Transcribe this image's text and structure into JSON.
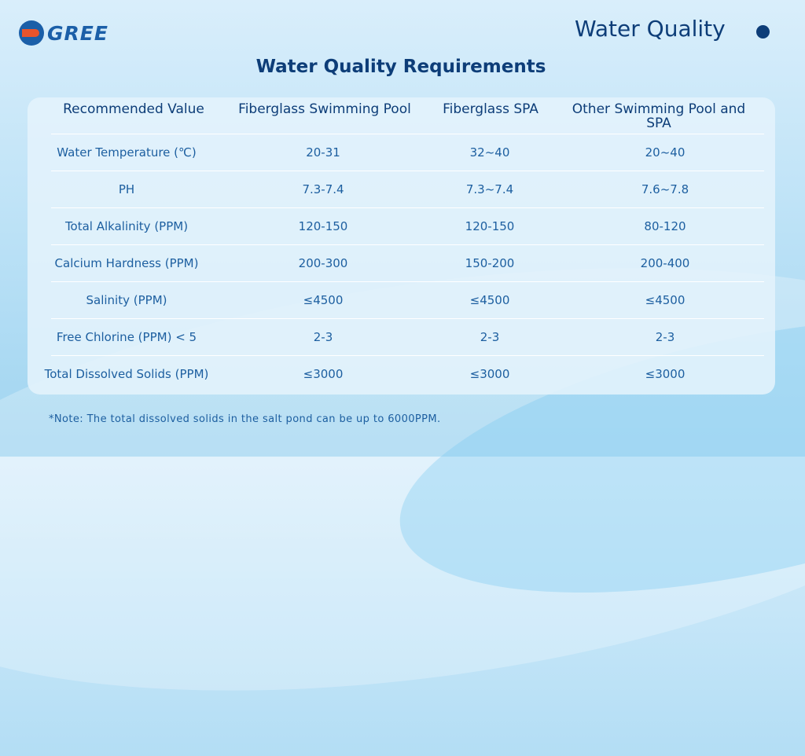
{
  "brand": {
    "name": "GREE"
  },
  "header": {
    "title": "Water Quality"
  },
  "main_title": "Water Quality Requirements",
  "table": {
    "columns": [
      "Recommended Value",
      "Fiberglass Swimming Pool",
      "Fiberglass SPA",
      "Other Swimming Pool and SPA"
    ],
    "rows": [
      [
        "Water Temperature (℃)",
        "20-31",
        "32~40",
        "20~40"
      ],
      [
        "PH",
        "7.3-7.4",
        "7.3~7.4",
        "7.6~7.8"
      ],
      [
        "Total Alkalinity (PPM)",
        "120-150",
        "120-150",
        "80-120"
      ],
      [
        "Calcium Hardness (PPM)",
        "200-300",
        "150-200",
        "200-400"
      ],
      [
        "Salinity (PPM)",
        "≤4500",
        "≤4500",
        "≤4500"
      ],
      [
        "Free Chlorine (PPM) < 5",
        "2-3",
        "2-3",
        "2-3"
      ],
      [
        "Total Dissolved Solids (PPM)",
        "≤3000",
        "≤3000",
        "≤3000"
      ]
    ]
  },
  "note": "*Note: The total dissolved solids in the salt pond can be up to 6000PPM.",
  "colors": {
    "primary": "#0d3d78",
    "text": "#1d5fa0",
    "logo_blue": "#1b5fa8",
    "logo_orange": "#e8542c"
  }
}
